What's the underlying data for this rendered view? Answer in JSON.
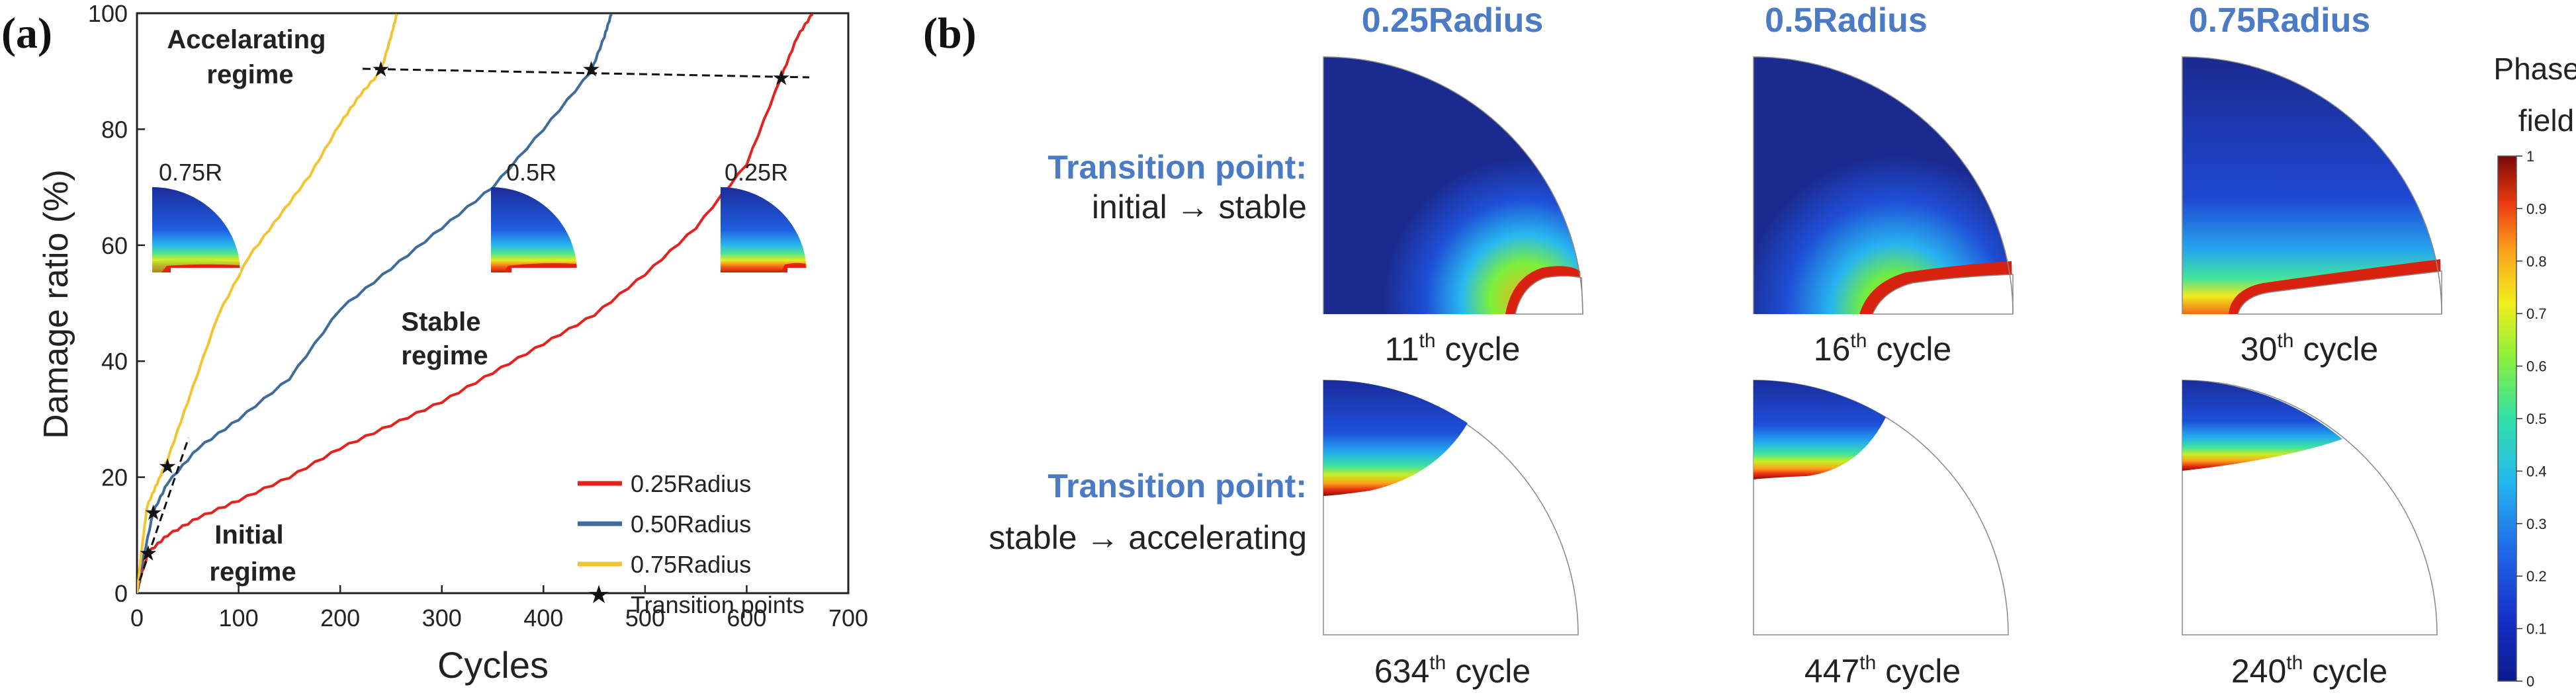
{
  "panels": {
    "a_label": "(a)",
    "b_label": "(b)"
  },
  "colors": {
    "r025": "#e4231f",
    "r050": "#3f6d9b",
    "r075": "#f4c430",
    "title_blue": "#4a7bc4",
    "axis": "#222222"
  },
  "chart_data": [
    {
      "type": "line",
      "xlabel": "Cycles",
      "ylabel": "Damage ratio (%)",
      "xlim": [
        0,
        700
      ],
      "ylim": [
        0,
        100
      ],
      "xticks": [
        0,
        100,
        200,
        300,
        400,
        500,
        600,
        700
      ],
      "yticks": [
        0,
        20,
        40,
        60,
        80,
        100
      ],
      "legend_position": "bottom-right",
      "series": [
        {
          "name": "0.25Radius",
          "color": "#e4231f",
          "x": [
            0,
            4,
            11,
            30,
            60,
            100,
            150,
            200,
            250,
            300,
            350,
            400,
            450,
            500,
            550,
            600,
            634,
            650,
            665
          ],
          "y": [
            0,
            3,
            7,
            10,
            13,
            16,
            20,
            25,
            29,
            33,
            38,
            43,
            48,
            55,
            63,
            74,
            89,
            96,
            100
          ]
        },
        {
          "name": "0.50Radius",
          "color": "#3f6d9b",
          "x": [
            0,
            5,
            16,
            30,
            60,
            100,
            150,
            200,
            250,
            300,
            350,
            400,
            447,
            460,
            467
          ],
          "y": [
            0,
            5,
            14,
            19,
            25,
            30,
            37,
            49,
            56,
            63,
            70,
            80,
            90,
            96,
            100
          ]
        },
        {
          "name": "0.75Radius",
          "color": "#f4c430",
          "x": [
            0,
            5,
            10,
            20,
            30,
            50,
            80,
            110,
            140,
            170,
            200,
            220,
            240,
            250,
            256
          ],
          "y": [
            0,
            8,
            15,
            19,
            23,
            33,
            48,
            58,
            65,
            72,
            81,
            86,
            90,
            96,
            100
          ]
        }
      ],
      "transition_points": {
        "name": "Transition points",
        "x": [
          11,
          16,
          30,
          240,
          447,
          634
        ],
        "y": [
          7,
          14,
          22,
          90.5,
          90.5,
          89
        ]
      },
      "annotations": {
        "accelerating": [
          "Accelarating",
          "regime"
        ],
        "stable": [
          "Stable",
          "regime"
        ],
        "initial": [
          "Initial",
          "regime"
        ],
        "insets": [
          "0.75R",
          "0.5R",
          "0.25R"
        ]
      }
    },
    {
      "type": "heatmap",
      "colorbar_title": [
        "Phase",
        "field"
      ],
      "colorbar_ticks": [
        "1",
        "0.9",
        "0.8",
        "0.7",
        "0.6",
        "0.5",
        "0.4",
        "0.3",
        "0.2",
        "0.1",
        "0"
      ],
      "column_titles": [
        "0.25Radius",
        "0.5Radius",
        "0.75Radius"
      ],
      "row1_label": {
        "title": "Transition point:",
        "text": "initial → stable"
      },
      "row2_label": {
        "title": "Transition point:",
        "text": "stable → accelerating"
      },
      "row1_cycles": [
        {
          "num": "11",
          "sup": "th",
          "text": " cycle"
        },
        {
          "num": "16",
          "sup": "th",
          "text": " cycle"
        },
        {
          "num": "30",
          "sup": "th",
          "text": " cycle"
        }
      ],
      "row2_cycles": [
        {
          "num": "634",
          "sup": "th",
          "text": " cycle"
        },
        {
          "num": "447",
          "sup": "th",
          "text": " cycle"
        },
        {
          "num": "240",
          "sup": "th",
          "text": " cycle"
        }
      ]
    }
  ]
}
